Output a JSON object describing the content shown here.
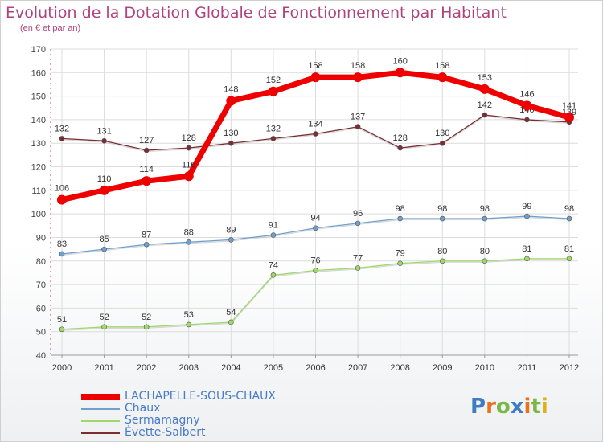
{
  "title": "Evolution de la Dotation Globale de Fonctionnement par Habitant",
  "subtitle": "(en € et par an)",
  "logo": {
    "text": "Proxiti",
    "letters": [
      {
        "c": "P",
        "color": "#3e7cc4"
      },
      {
        "c": "r",
        "color": "#e8731c"
      },
      {
        "c": "o",
        "color": "#7ab648"
      },
      {
        "c": "x",
        "color": "#3e7cc4"
      },
      {
        "c": "i",
        "color": "#e8731c"
      },
      {
        "c": "t",
        "color": "#7ab648"
      },
      {
        "c": "i",
        "color": "#d9b21b"
      }
    ]
  },
  "chart_data": {
    "type": "line",
    "x": [
      "2000",
      "2001",
      "2002",
      "2003",
      "2004",
      "2005",
      "2006",
      "2007",
      "2008",
      "2009",
      "2010",
      "2011",
      "2012"
    ],
    "ylim": [
      40,
      170
    ],
    "yticks": [
      40,
      50,
      60,
      70,
      80,
      90,
      100,
      110,
      120,
      130,
      140,
      150,
      160,
      170
    ],
    "grid": true,
    "legend_position": "bottom-left",
    "series": [
      {
        "name": "LACHAPELLE-SOUS-CHAUX",
        "color": "#ee0000",
        "values": [
          106,
          110,
          114,
          116,
          148,
          152,
          158,
          158,
          160,
          158,
          153,
          146,
          141
        ]
      },
      {
        "name": "Chaux",
        "color": "#6f9fcf",
        "values": [
          83,
          85,
          87,
          88,
          89,
          91,
          94,
          96,
          98,
          98,
          98,
          99,
          98
        ]
      },
      {
        "name": "Sermamagny",
        "color": "#9ed96a",
        "values": [
          51,
          52,
          52,
          53,
          54,
          74,
          76,
          77,
          79,
          80,
          80,
          81,
          81
        ]
      },
      {
        "name": "Évette-Salbert",
        "color": "#7a2e33",
        "values": [
          132,
          131,
          127,
          128,
          130,
          132,
          134,
          137,
          128,
          130,
          142,
          140,
          139
        ]
      }
    ]
  }
}
